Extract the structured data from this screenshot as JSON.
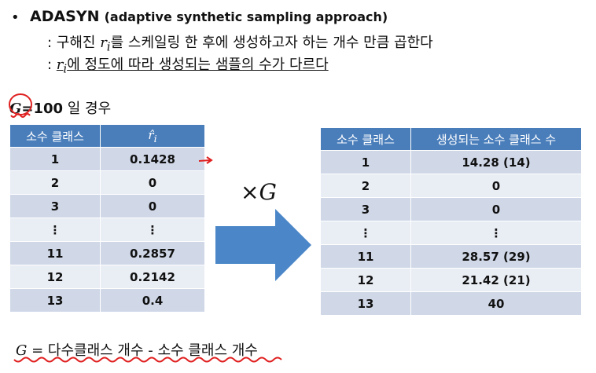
{
  "slide": {
    "bullet": "•",
    "title_bold": "ADASYN",
    "title_sub": "(adaptive synthetic sampling approach)",
    "line1_prefix": ": 구해진 ",
    "line1_var": "r",
    "line1_var_sub": "i",
    "line1_suffix": "를 스케일링 한 후에 생성하고자 하는 개수 만큼 곱한다",
    "line2_prefix": ": ",
    "line2_var": "r",
    "line2_var_sub": "i",
    "line2_suffix": "에 정도에 따라 생성되는 샘플의 수가 다르다",
    "g_var": "G",
    "g_value": "=100",
    "g_suffix": " 일 경우",
    "multiply_sign": "×",
    "multiply_var": "G",
    "bottom_var": "G",
    "bottom_rest": " = 다수클래스 개수 - 소수 클래스 개수"
  },
  "left_table": {
    "headers": [
      "소수 클래스",
      "r̂",
      "i"
    ],
    "rows": [
      [
        "1",
        "0.1428"
      ],
      [
        "2",
        "0"
      ],
      [
        "3",
        "0"
      ],
      [
        "⋮",
        "⋮"
      ],
      [
        "11",
        "0.2857"
      ],
      [
        "12",
        "0.2142"
      ],
      [
        "13",
        "0.4"
      ]
    ]
  },
  "right_table": {
    "headers": [
      "소수 클래스",
      "생성되는 소수 클래스 수"
    ],
    "rows": [
      [
        "1",
        "14.28 (14)"
      ],
      [
        "2",
        "0"
      ],
      [
        "3",
        "0"
      ],
      [
        "⋮",
        "⋮"
      ],
      [
        "11",
        "28.57 (29)"
      ],
      [
        "12",
        "21.42 (21)"
      ],
      [
        "13",
        "40"
      ]
    ]
  },
  "colors": {
    "header_bg": "#4a7ebb",
    "row_odd": "#d0d8e8",
    "row_even": "#e9edf4",
    "arrow": "#4a86c8",
    "annotation": "#e02020"
  }
}
